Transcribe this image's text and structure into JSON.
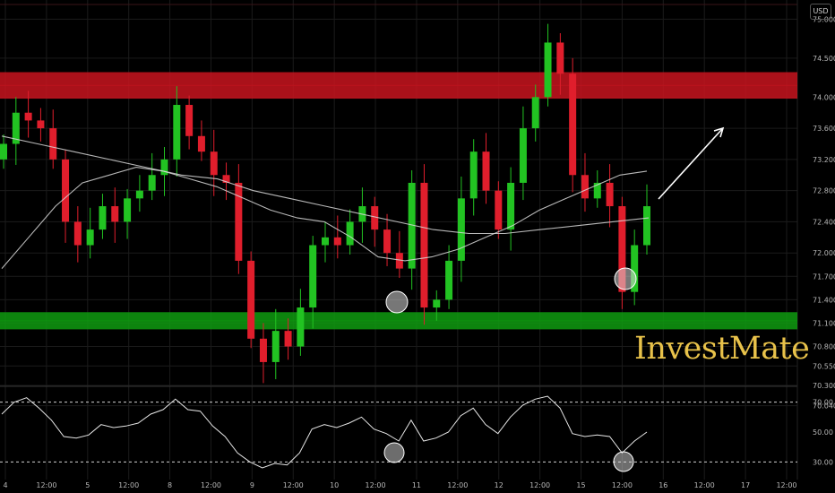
{
  "header": {
    "currency": "USD"
  },
  "watermark": "InvestMate",
  "colors": {
    "background": "#000000",
    "up": "#22c322",
    "down": "#e01e2c",
    "resistance": "#c8141e",
    "support": "#0f9b10",
    "ma": "#d8d8d8",
    "axis_text": "#b7b7b7",
    "watermark": "#e8c24a"
  },
  "chart_data": [
    {
      "type": "candlestick",
      "grid": true,
      "ylim": [
        70.3,
        75.2
      ],
      "y_ticks": [
        "75.000",
        "74.500",
        "74.000",
        "73.600",
        "73.200",
        "72.800",
        "72.400",
        "72.000",
        "71.700",
        "71.400",
        "71.100",
        "70.800",
        "70.550",
        "70.300",
        "70.040"
      ],
      "x_ticks": [
        "4",
        "12:00",
        "5",
        "12:00",
        "8",
        "12:00",
        "9",
        "12:00",
        "10",
        "12:00",
        "11",
        "12:00",
        "12",
        "12:00",
        "15",
        "12:00",
        "16",
        "12:00",
        "17",
        "12:00"
      ],
      "zones": [
        {
          "type": "resistance",
          "range": [
            73.98,
            74.32
          ]
        },
        {
          "type": "support",
          "range": [
            71.02,
            71.24
          ]
        }
      ],
      "close": [
        73.4,
        73.8,
        73.7,
        73.6,
        73.2,
        72.4,
        72.1,
        72.3,
        72.6,
        72.4,
        72.7,
        72.8,
        73.0,
        73.2,
        73.9,
        73.5,
        73.3,
        73.0,
        72.9,
        71.9,
        70.9,
        70.6,
        71.0,
        70.8,
        71.3,
        72.1,
        72.2,
        72.1,
        72.4,
        72.6,
        72.3,
        72.0,
        71.8,
        72.9,
        71.3,
        71.4,
        71.9,
        72.7,
        73.3,
        72.8,
        72.3,
        72.9,
        73.6,
        74.0,
        74.7,
        74.3,
        73.0,
        72.7,
        72.9,
        72.6,
        71.5,
        72.1,
        72.6
      ],
      "moving_averages": [
        {
          "role": "fast",
          "values": [
            71.8,
            72.2,
            72.6,
            72.9,
            73.0,
            73.1,
            73.05,
            72.95,
            72.85,
            72.7,
            72.55,
            72.45,
            72.4,
            72.2,
            71.95,
            71.9,
            71.95,
            72.05,
            72.2,
            72.35,
            72.55,
            72.7,
            72.85,
            73.0,
            73.05
          ]
        },
        {
          "role": "slow",
          "values": [
            73.5,
            73.4,
            73.3,
            73.2,
            73.1,
            73.0,
            72.95,
            72.8,
            72.7,
            72.6,
            72.5,
            72.4,
            72.3,
            72.25,
            72.25,
            72.3,
            72.35,
            72.4,
            72.45
          ]
        }
      ],
      "annotations": [
        {
          "type": "arrow",
          "direction": "up-right"
        }
      ]
    },
    {
      "type": "line",
      "name": "oscillator",
      "y_ticks": [
        "70.00",
        "50.00",
        "30.00"
      ],
      "levels": [
        70,
        30
      ],
      "values": [
        62,
        70,
        73,
        66,
        58,
        47,
        46,
        48,
        55,
        53,
        54,
        56,
        62,
        65,
        72,
        65,
        64,
        54,
        47,
        36,
        30,
        26,
        29,
        28,
        36,
        52,
        55,
        53,
        56,
        60,
        52,
        49,
        44,
        58,
        44,
        46,
        50,
        61,
        66,
        55,
        49,
        60,
        68,
        72,
        74,
        66,
        49,
        47,
        48,
        47,
        36,
        44,
        50
      ]
    }
  ]
}
